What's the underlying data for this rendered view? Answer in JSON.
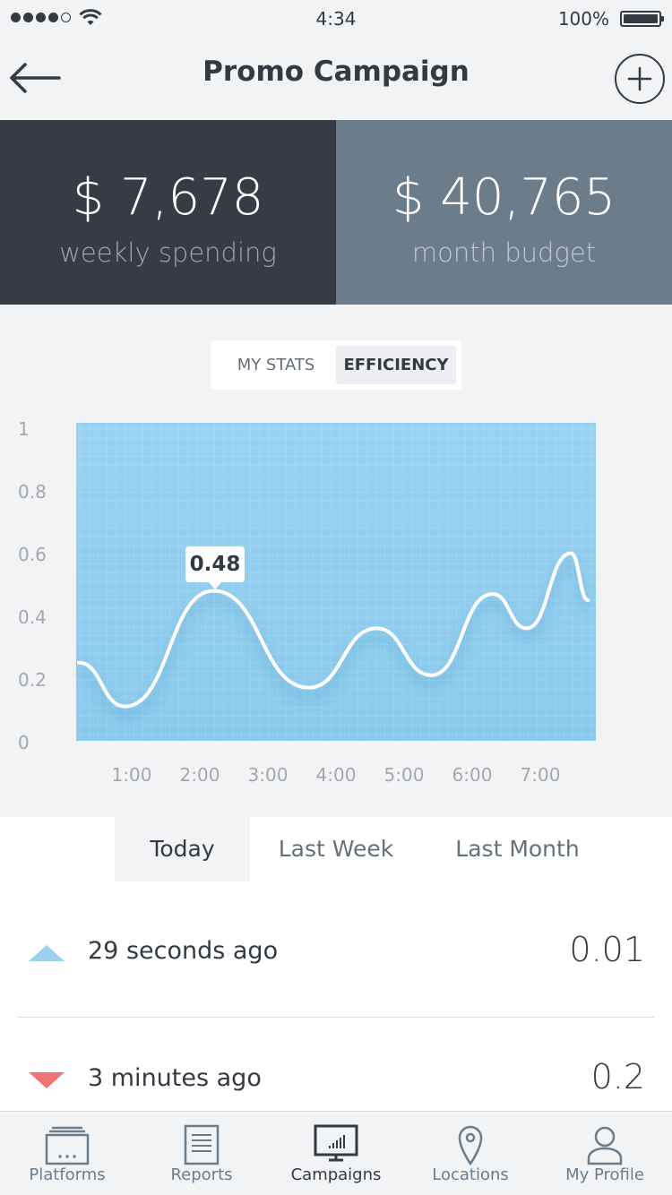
{
  "status_bar": {
    "time": "4:34",
    "battery": "100%"
  },
  "nav": {
    "title": "Promo Campaign"
  },
  "stats": [
    {
      "value": "$ 7,678",
      "label": "weekly spending"
    },
    {
      "value": "$ 40,765",
      "label": "month budget"
    }
  ],
  "segment": {
    "options": [
      "MY STATS",
      "EFFICIENCY"
    ],
    "selected": "EFFICIENCY"
  },
  "tooltip": "0.48",
  "chart_data": {
    "type": "line",
    "y_ticks": [
      "1",
      "0.8",
      "0.6",
      "0.4",
      "0.2",
      "0"
    ],
    "x_ticks": [
      "1:00",
      "2:00",
      "3:00",
      "4:00",
      "5:00",
      "6:00",
      "7:00"
    ],
    "ylim": [
      0,
      1
    ],
    "xlim": [
      0.15,
      7.7
    ],
    "grid": true,
    "series": [
      {
        "x": [
          0.15,
          0.9,
          2.2,
          3.6,
          4.6,
          5.4,
          6.3,
          6.8,
          7.45,
          7.7
        ],
        "y": [
          0.25,
          0.11,
          0.48,
          0.17,
          0.36,
          0.21,
          0.47,
          0.36,
          0.6,
          0.45
        ]
      }
    ],
    "highlight": {
      "x": 2.2,
      "y": 0.48,
      "label": "0.48"
    }
  },
  "range_tabs": {
    "options": [
      "Today",
      "Last Week",
      "Last Month"
    ],
    "selected": "Today"
  },
  "activity": [
    {
      "direction": "up",
      "time": "29 seconds ago",
      "value": "0.01",
      "color": "#9dd0ee"
    },
    {
      "direction": "down",
      "time": "3 minutes ago",
      "value": "0.2",
      "color": "#f07374"
    }
  ],
  "tab_bar": {
    "items": [
      {
        "label": "Platforms",
        "icon": "platforms-icon"
      },
      {
        "label": "Reports",
        "icon": "reports-icon"
      },
      {
        "label": "Campaigns",
        "icon": "campaigns-icon"
      },
      {
        "label": "Locations",
        "icon": "location-pin-icon"
      },
      {
        "label": "My Profile",
        "icon": "profile-icon"
      }
    ],
    "selected": "Campaigns"
  }
}
